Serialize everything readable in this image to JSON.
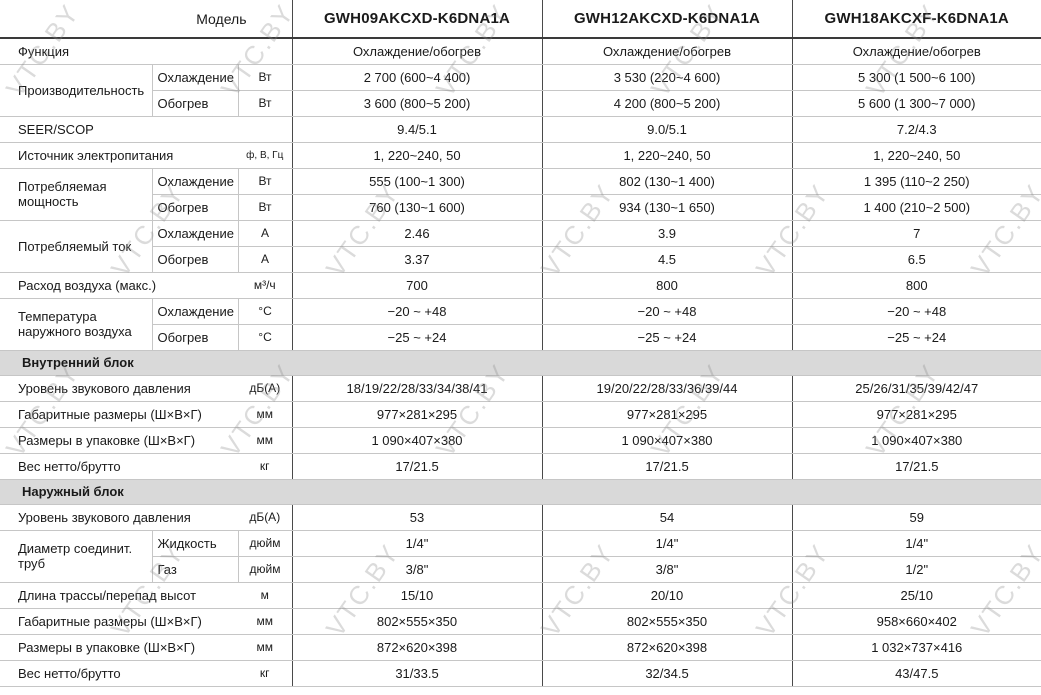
{
  "watermark": {
    "text": "VTC.BY"
  },
  "table": {
    "header": {
      "label": "Модель",
      "models": [
        "GWH09AKCXD-K6DNA1A",
        "GWH12AKCXD-K6DNA1A",
        "GWH18AKCXF-K6DNA1A"
      ]
    },
    "rows": [
      {
        "type": "row",
        "name": "Функция",
        "unit": "",
        "values": [
          "Охлаждение/обогрев",
          "Охлаждение/обогрев",
          "Охлаждение/обогрев"
        ]
      },
      {
        "type": "group",
        "name": "Производительность",
        "subrows": [
          {
            "sub": "Охлаждение",
            "unit": "Вт",
            "values": [
              "2 700 (600~4 400)",
              "3 530 (220~4 600)",
              "5 300 (1 500~6 100)"
            ]
          },
          {
            "sub": "Обогрев",
            "unit": "Вт",
            "values": [
              "3 600 (800~5 200)",
              "4 200 (800~5 200)",
              "5 600 (1 300~7 000)"
            ]
          }
        ]
      },
      {
        "type": "row",
        "name": "SEER/SCOP",
        "unit": "",
        "values": [
          "9.4/5.1",
          "9.0/5.1",
          "7.2/4.3"
        ]
      },
      {
        "type": "row",
        "name": "Источник электропитания",
        "unit": "ф, В, Гц",
        "unit_small": true,
        "values": [
          "1, 220~240, 50",
          "1, 220~240, 50",
          "1, 220~240, 50"
        ]
      },
      {
        "type": "group",
        "name": "Потребляемая мощность",
        "subrows": [
          {
            "sub": "Охлаждение",
            "unit": "Вт",
            "values": [
              "555 (100~1 300)",
              "802 (130~1 400)",
              "1 395 (110~2 250)"
            ]
          },
          {
            "sub": "Обогрев",
            "unit": "Вт",
            "values": [
              "760 (130~1 600)",
              "934 (130~1 650)",
              "1 400 (210~2 500)"
            ]
          }
        ]
      },
      {
        "type": "group",
        "name": "Потребляемый ток",
        "subrows": [
          {
            "sub": "Охлаждение",
            "unit": "А",
            "values": [
              "2.46",
              "3.9",
              "7"
            ]
          },
          {
            "sub": "Обогрев",
            "unit": "А",
            "values": [
              "3.37",
              "4.5",
              "6.5"
            ]
          }
        ]
      },
      {
        "type": "row",
        "name": "Расход воздуха (макс.)",
        "unit": "м³/ч",
        "values": [
          "700",
          "800",
          "800"
        ]
      },
      {
        "type": "group",
        "name": "Температура наружного воздуха",
        "subrows": [
          {
            "sub": "Охлаждение",
            "unit": "°С",
            "values": [
              "−20 ~ +48",
              "−20 ~ +48",
              "−20 ~ +48"
            ]
          },
          {
            "sub": "Обогрев",
            "unit": "°С",
            "values": [
              "−25 ~ +24",
              "−25 ~ +24",
              "−25 ~ +24"
            ]
          }
        ]
      },
      {
        "type": "section",
        "label": "Внутренний блок"
      },
      {
        "type": "row",
        "name": "Уровень звукового давления",
        "unit": "дБ(А)",
        "values": [
          "18/19/22/28/33/34/38/41",
          "19/20/22/28/33/36/39/44",
          "25/26/31/35/39/42/47"
        ]
      },
      {
        "type": "row",
        "name": "Габаритные размеры (Ш×В×Г)",
        "unit": "мм",
        "values": [
          "977×281×295",
          "977×281×295",
          "977×281×295"
        ]
      },
      {
        "type": "row",
        "name": "Размеры в упаковке (Ш×В×Г)",
        "unit": "мм",
        "values": [
          "1 090×407×380",
          "1 090×407×380",
          "1 090×407×380"
        ]
      },
      {
        "type": "row",
        "name": "Вес нетто/брутто",
        "unit": "кг",
        "values": [
          "17/21.5",
          "17/21.5",
          "17/21.5"
        ]
      },
      {
        "type": "section",
        "label": "Наружный блок"
      },
      {
        "type": "row",
        "name": "Уровень звукового давления",
        "unit": "дБ(А)",
        "values": [
          "53",
          "54",
          "59"
        ]
      },
      {
        "type": "group",
        "name": "Диаметр соединит. труб",
        "subrows": [
          {
            "sub": "Жидкость",
            "unit": "дюйм",
            "values": [
              "1/4\"",
              "1/4\"",
              "1/4\""
            ]
          },
          {
            "sub": "Газ",
            "unit": "дюйм",
            "values": [
              "3/8\"",
              "3/8\"",
              "1/2\""
            ]
          }
        ]
      },
      {
        "type": "row",
        "name": "Длина трассы/перепад высот",
        "unit": "м",
        "values": [
          "15/10",
          "20/10",
          "25/10"
        ]
      },
      {
        "type": "row",
        "name": "Габаритные размеры (Ш×В×Г)",
        "unit": "мм",
        "values": [
          "802×555×350",
          "802×555×350",
          "958×660×402"
        ]
      },
      {
        "type": "row",
        "name": "Размеры в упаковке (Ш×В×Г)",
        "unit": "мм",
        "values": [
          "872×620×398",
          "872×620×398",
          "1 032×737×416"
        ]
      },
      {
        "type": "row",
        "name": "Вес нетто/брутто",
        "unit": "кг",
        "values": [
          "31/33.5",
          "32/34.5",
          "43/47.5"
        ]
      }
    ]
  }
}
